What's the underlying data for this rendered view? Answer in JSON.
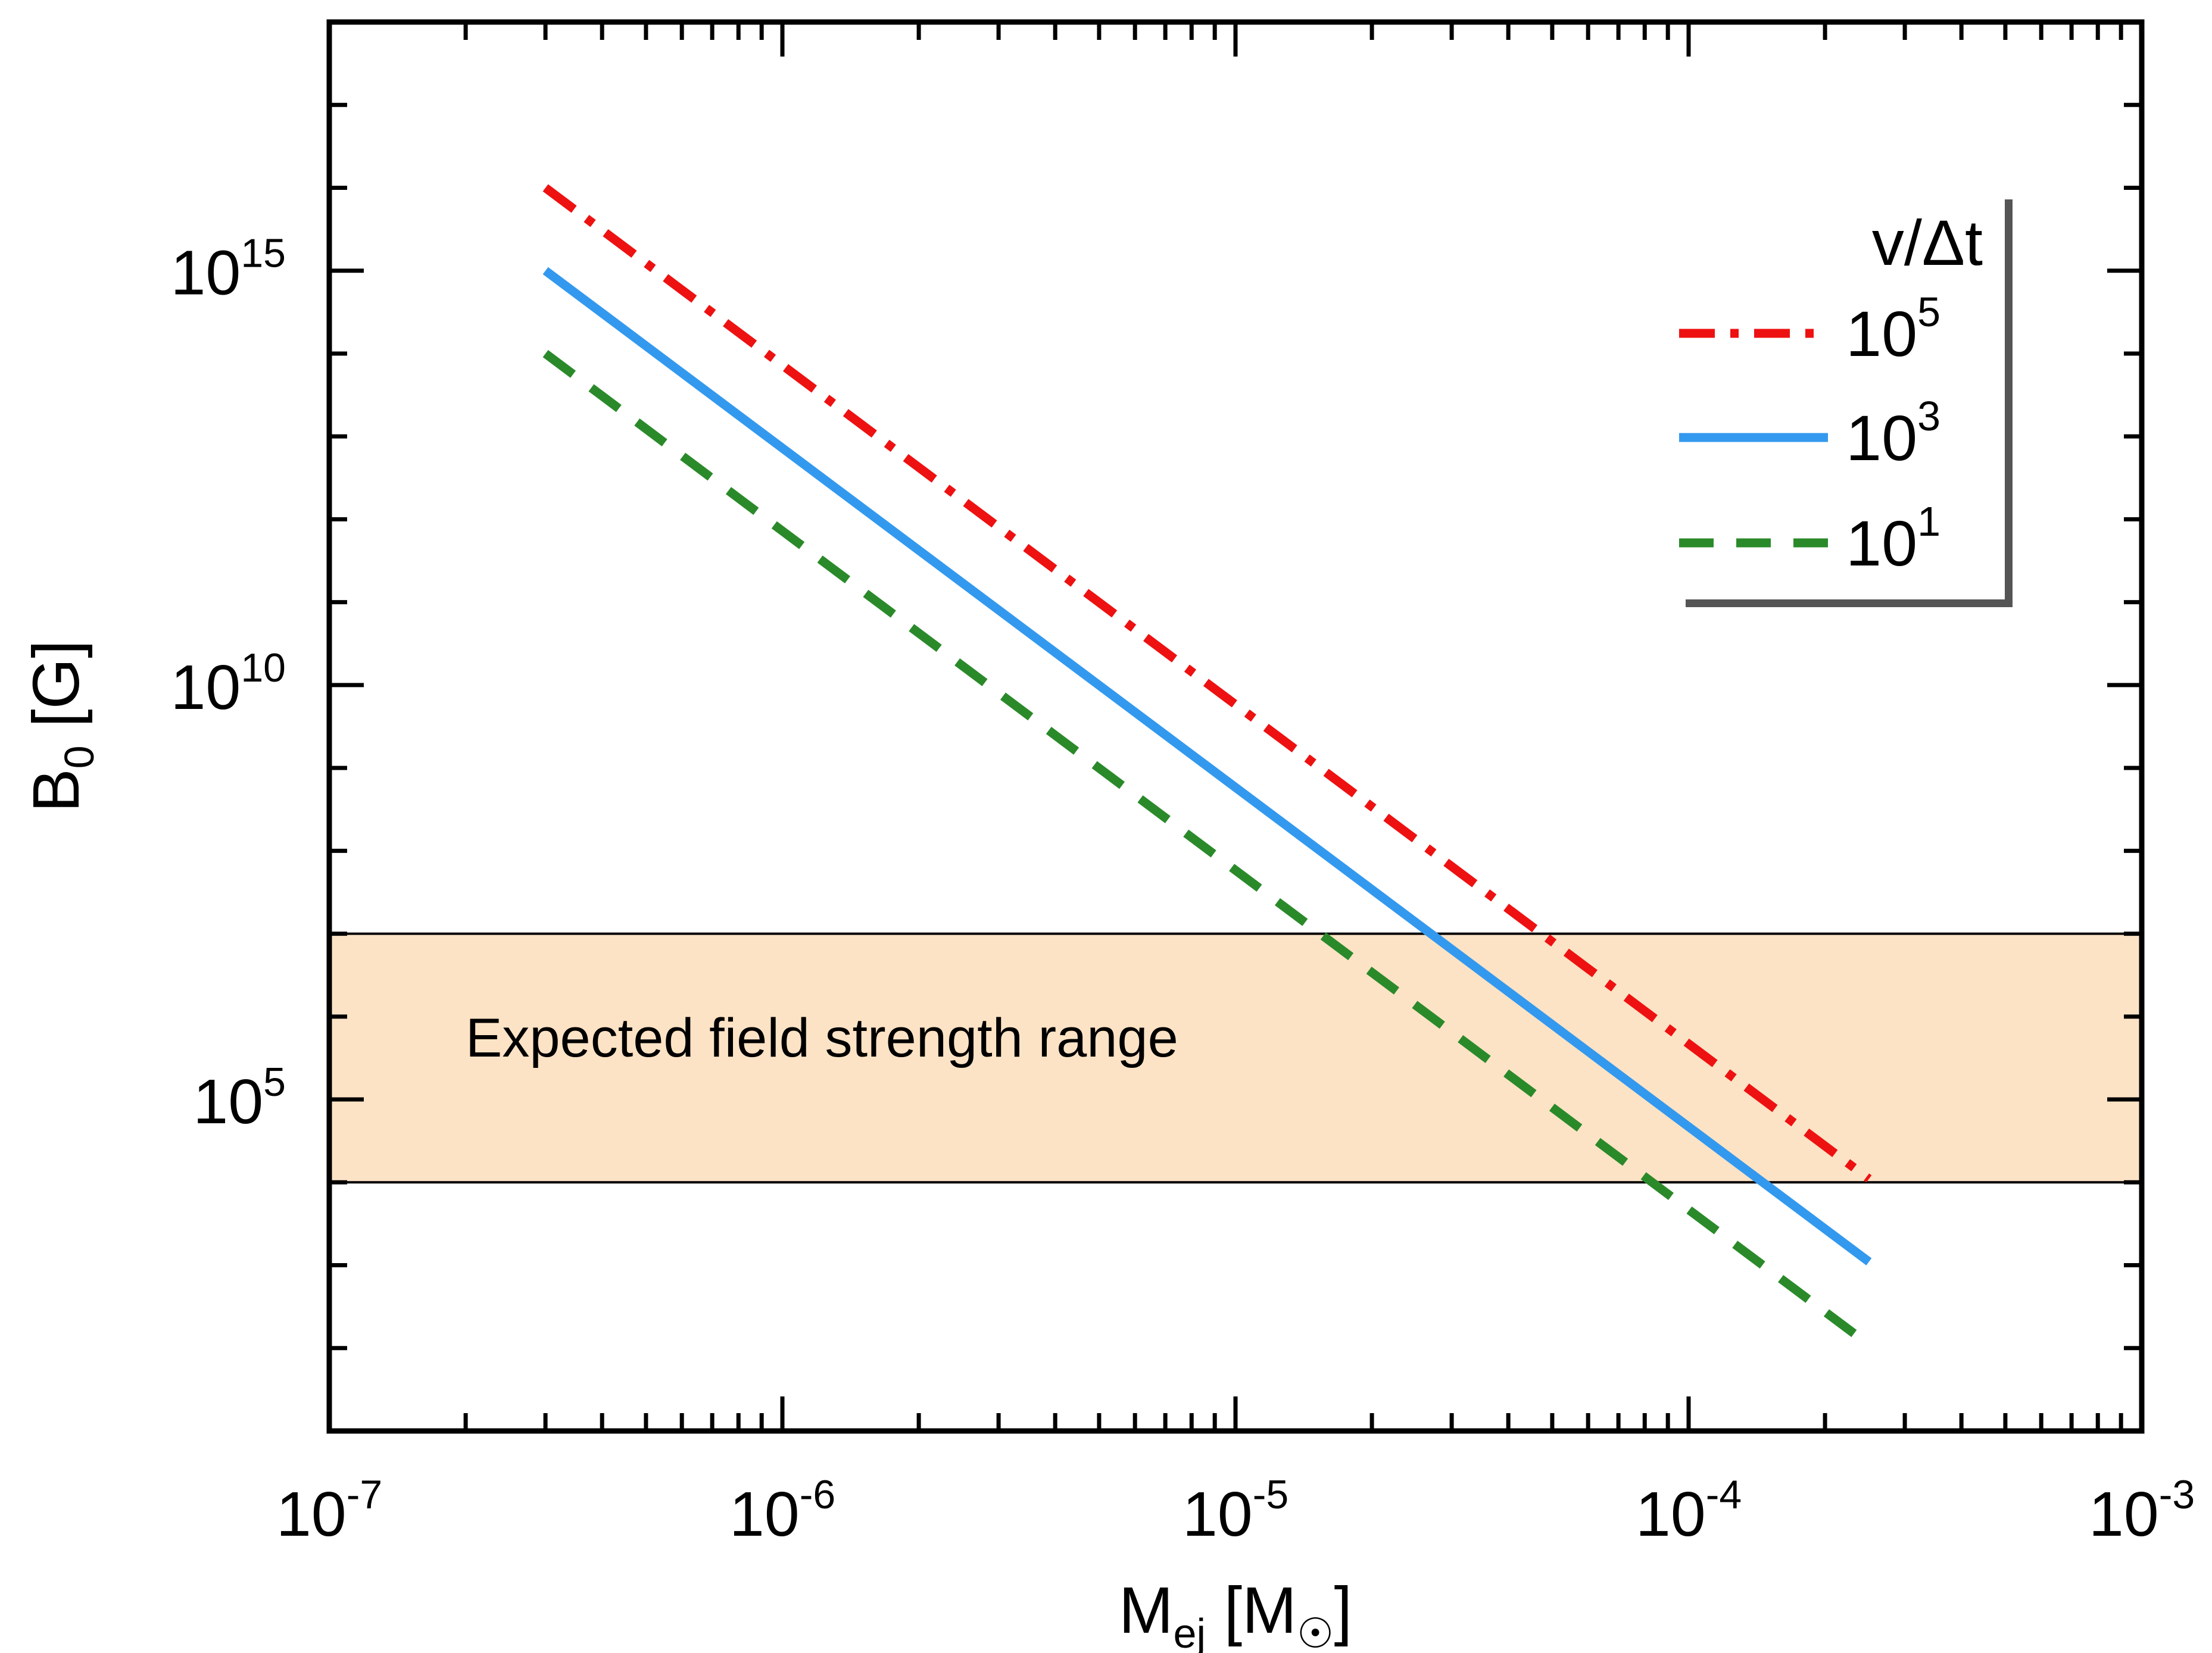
{
  "chart_data": {
    "type": "line",
    "xscale": "log",
    "yscale": "log",
    "xlim": [
      1e-07,
      0.001
    ],
    "ylim": [
      10.0,
      1e+18
    ],
    "xlabel": {
      "base": "M",
      "sub": "ej",
      "rest": " [M",
      "sym": "☉",
      "close": "]"
    },
    "ylabel": {
      "base": "B",
      "sub": "0",
      "rest": " [G]"
    },
    "xticks": [
      {
        "value": 1e-07,
        "base": "10",
        "exp": "-7"
      },
      {
        "value": 1e-06,
        "base": "10",
        "exp": "-6"
      },
      {
        "value": 1e-05,
        "base": "10",
        "exp": "-5"
      },
      {
        "value": 0.0001,
        "base": "10",
        "exp": "-4"
      },
      {
        "value": 0.001,
        "base": "10",
        "exp": "-3"
      }
    ],
    "yticks": [
      {
        "value": 100000.0,
        "base": "10",
        "exp": "5"
      },
      {
        "value": 10000000000.0,
        "base": "10",
        "exp": "10"
      },
      {
        "value": 1000000000000000.0,
        "base": "10",
        "exp": "15"
      }
    ],
    "band": {
      "ymin": 10000.0,
      "ymax": 10000000.0,
      "color": "#fde3c5",
      "label": "Expected field strength range"
    },
    "legend": {
      "title": "v/Δt",
      "placement": "top-right"
    },
    "series": [
      {
        "name": "10^5",
        "label_base": "10",
        "label_exp": "5",
        "color": "#ee1111",
        "style": "dashdot",
        "x": [
          3e-07,
          0.00025
        ],
        "y": [
          1e+16,
          11000.0
        ]
      },
      {
        "name": "10^3",
        "label_base": "10",
        "label_exp": "3",
        "color": "#3399ee",
        "style": "solid",
        "x": [
          3e-07,
          0.00025
        ],
        "y": [
          1000000000000000.0,
          1100.0
        ]
      },
      {
        "name": "10^1",
        "label_base": "10",
        "label_exp": "1",
        "color": "#2a8a2a",
        "style": "dashed",
        "x": [
          3e-07,
          0.00025
        ],
        "y": [
          100000000000000.0,
          110.0
        ]
      }
    ]
  }
}
